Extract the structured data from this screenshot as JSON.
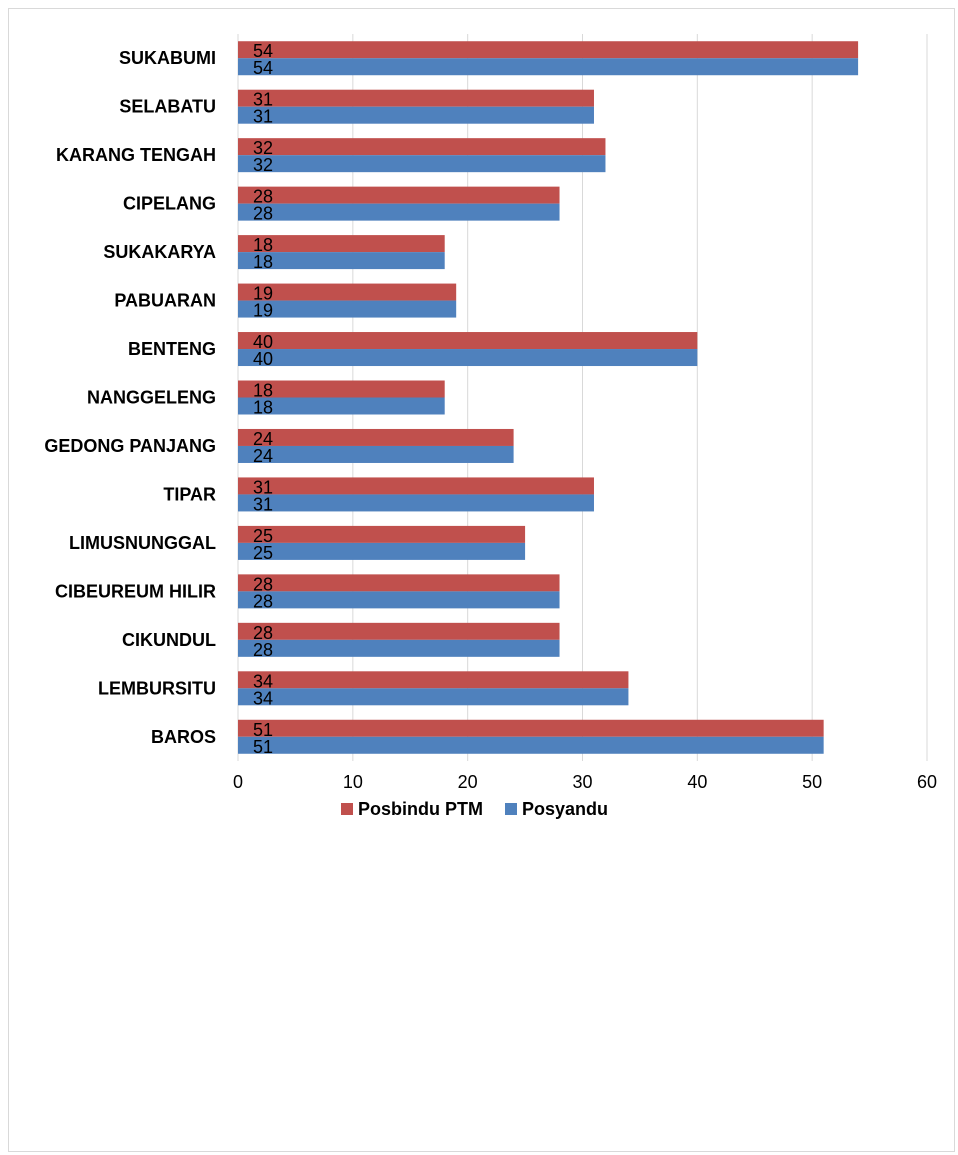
{
  "chart_data": {
    "type": "bar",
    "orientation": "horizontal",
    "title": "",
    "xlabel": "",
    "ylabel": "",
    "categories": [
      "BAROS",
      "LEMBURSITU",
      "CIKUNDUL",
      "CIBEUREUM HILIR",
      "LIMUSNUNGGAL",
      "TIPAR",
      "GEDONG PANJANG",
      "NANGGELENG",
      "BENTENG",
      "PABUARAN",
      "SUKAKARYA",
      "CIPELANG",
      "KARANG TENGAH",
      "SELABATU",
      "SUKABUMI"
    ],
    "series": [
      {
        "name": "Posyandu",
        "color": "#4f81bd",
        "values": [
          51,
          34,
          28,
          28,
          25,
          31,
          24,
          18,
          40,
          19,
          18,
          28,
          32,
          31,
          54
        ]
      },
      {
        "name": "Posbindu PTM",
        "color": "#c0504d",
        "values": [
          51,
          34,
          28,
          28,
          25,
          31,
          24,
          18,
          40,
          19,
          18,
          28,
          32,
          31,
          54
        ]
      }
    ],
    "xlim": [
      0,
      60
    ],
    "xticks": [
      "0",
      "10",
      "20",
      "30",
      "40",
      "50",
      "60"
    ],
    "grid": true,
    "gridline_color": "#d9d9d9",
    "data_labels": true,
    "legend": {
      "position": "bottom",
      "order": [
        "Posbindu PTM",
        "Posyandu"
      ]
    }
  }
}
